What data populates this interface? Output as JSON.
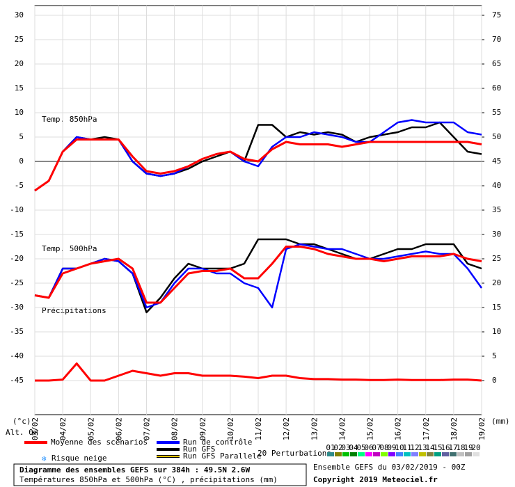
{
  "chart_data": {
    "type": "line",
    "annotations": [
      "Temp. 850hPa",
      "Temp. 500hPa",
      "Précipitations"
    ],
    "y_unit_label": "(°c)",
    "y2_unit_label": "(mm)",
    "altitude_label": "Alt. 0m",
    "xlim": [
      3,
      19
    ],
    "xticks": [
      {
        "value": 3,
        "label": "03/02"
      },
      {
        "value": 4,
        "label": "04/02"
      },
      {
        "value": 5,
        "label": "05/02"
      },
      {
        "value": 6,
        "label": "06/02"
      },
      {
        "value": 7,
        "label": "07/02"
      },
      {
        "value": 8,
        "label": "08/02"
      },
      {
        "value": 9,
        "label": "09/02"
      },
      {
        "value": 10,
        "label": "10/02"
      },
      {
        "value": 11,
        "label": "11/02"
      },
      {
        "value": 12,
        "label": "12/02"
      },
      {
        "value": 13,
        "label": "13/02"
      },
      {
        "value": 14,
        "label": "14/02"
      },
      {
        "value": 15,
        "label": "15/02"
      },
      {
        "value": 16,
        "label": "16/02"
      },
      {
        "value": 17,
        "label": "17/02"
      },
      {
        "value": 18,
        "label": "18/02"
      },
      {
        "value": 19,
        "label": "19/02"
      }
    ],
    "ylim": [
      -52,
      32
    ],
    "yticks": [
      30,
      25,
      20,
      15,
      10,
      5,
      0,
      -5,
      -10,
      -15,
      -20,
      -25,
      -30,
      -35,
      -40,
      -45
    ],
    "y2lim": [
      -7,
      77
    ],
    "y2ticks": [
      75,
      70,
      65,
      60,
      55,
      50,
      45,
      40,
      35,
      30,
      25,
      20,
      15,
      10,
      5,
      0
    ],
    "grid": true,
    "x": [
      3,
      3.5,
      4,
      4.5,
      5,
      5.5,
      6,
      6.5,
      7,
      7.5,
      8,
      8.5,
      9,
      9.5,
      10,
      10.5,
      11,
      11.5,
      12,
      12.5,
      13,
      13.5,
      14,
      14.5,
      15,
      15.5,
      16,
      16.5,
      17,
      17.5,
      18,
      18.5,
      19
    ],
    "series": [
      {
        "name": "Moyenne des scénarios",
        "color": "#ff0000",
        "t850": [
          -6,
          -4,
          2,
          4.5,
          4.5,
          4.5,
          4.5,
          1,
          -2,
          -2.5,
          -2,
          -1,
          0.5,
          1.5,
          2,
          0.5,
          0,
          2.5,
          4,
          3.5,
          3.5,
          3.5,
          3,
          3.5,
          4,
          4,
          4,
          4,
          4,
          4,
          4,
          4,
          3.5
        ],
        "t500": [
          -27.5,
          -28,
          -23,
          -22,
          -21,
          -20.5,
          -20,
          -22,
          -29,
          -29,
          -26,
          -23,
          -22.5,
          -22.5,
          -22,
          -24,
          -24,
          -21,
          -17.5,
          -17.5,
          -18,
          -19,
          -19.5,
          -20,
          -20,
          -20.5,
          -20,
          -19.5,
          -19.5,
          -19.5,
          -19,
          -20,
          -20.5
        ],
        "precip": [
          0,
          0,
          0.2,
          3.5,
          0,
          0,
          1,
          2,
          1.5,
          1,
          1.5,
          1.5,
          1,
          1,
          1,
          0.8,
          0.5,
          1,
          1,
          0.5,
          0.3,
          0.3,
          0.2,
          0.2,
          0.1,
          0.1,
          0.2,
          0.1,
          0.1,
          0.1,
          0.2,
          0.2,
          0
        ]
      },
      {
        "name": "Run de contrôle",
        "color": "#0000ff",
        "t850": [
          -6,
          -4,
          2,
          5,
          4.5,
          4.5,
          4.5,
          0,
          -2.5,
          -3,
          -2.5,
          -1,
          0.5,
          1.5,
          2,
          0,
          -1,
          3,
          5,
          5,
          6,
          5.5,
          5,
          4,
          4,
          6,
          8,
          8.5,
          8,
          8,
          8,
          6,
          5.5
        ],
        "t500": [
          -27.5,
          -28,
          -22,
          -22,
          -21,
          -20,
          -20.5,
          -23,
          -30,
          -29,
          -25,
          -22,
          -22,
          -23,
          -23,
          -25,
          -26,
          -30,
          -18,
          -17,
          -17.5,
          -18,
          -18,
          -19,
          -20,
          -20,
          -19.5,
          -19,
          -18.5,
          -19,
          -19,
          -22,
          -26
        ]
      },
      {
        "name": "Run GFS",
        "color": "#000000",
        "t850": [
          -6,
          -4,
          2,
          5,
          4.5,
          5,
          4.5,
          0,
          -2.5,
          -3,
          -2.5,
          -1.5,
          0,
          1,
          2,
          0,
          7.5,
          7.5,
          5,
          6,
          5.5,
          6,
          5.5,
          4,
          5,
          5.5,
          6,
          7,
          7,
          8,
          5,
          2,
          1.5
        ],
        "t500": [
          -27.5,
          -28,
          -22,
          -22,
          -21,
          -20,
          -20.5,
          -23,
          -31,
          -28,
          -24,
          -21,
          -22,
          -22,
          -22,
          -21,
          -16,
          -16,
          -16,
          -17,
          -17,
          -18,
          -19,
          -20,
          -20,
          -19,
          -18,
          -18,
          -17,
          -17,
          -17,
          -21,
          -22
        ]
      },
      {
        "name": "Run GFS Parallele",
        "color": "#e0c000"
      }
    ],
    "snow_label": "Risque neige",
    "perturbations": {
      "label": "20 Perturbations",
      "names": [
        "01",
        "02",
        "03",
        "04",
        "05",
        "06",
        "07",
        "08",
        "09",
        "10",
        "11",
        "12",
        "13",
        "14",
        "15",
        "16",
        "17",
        "18",
        "19",
        "20"
      ],
      "colors": [
        "#2e8b8b",
        "#808000",
        "#00c000",
        "#008000",
        "#00ff80",
        "#ff00ff",
        "#c000c0",
        "#80ff00",
        "#8000ff",
        "#4080ff",
        "#00c0c0",
        "#8080ff",
        "#c0c000",
        "#808040",
        "#00a080",
        "#6060a0",
        "#407070",
        "#c0c0c0",
        "#a0a0a0",
        "#e0e0e0"
      ]
    },
    "title": "Diagramme des ensembles GEFS sur 384h : 49.5N 2.6W",
    "subtitle": "Températures 850hPa et 500hPa (°C) , précipitations (mm)",
    "run_info": "Ensemble GEFS du 03/02/2019 - 00Z",
    "copyright": "Copyright 2019 Meteociel.fr"
  }
}
